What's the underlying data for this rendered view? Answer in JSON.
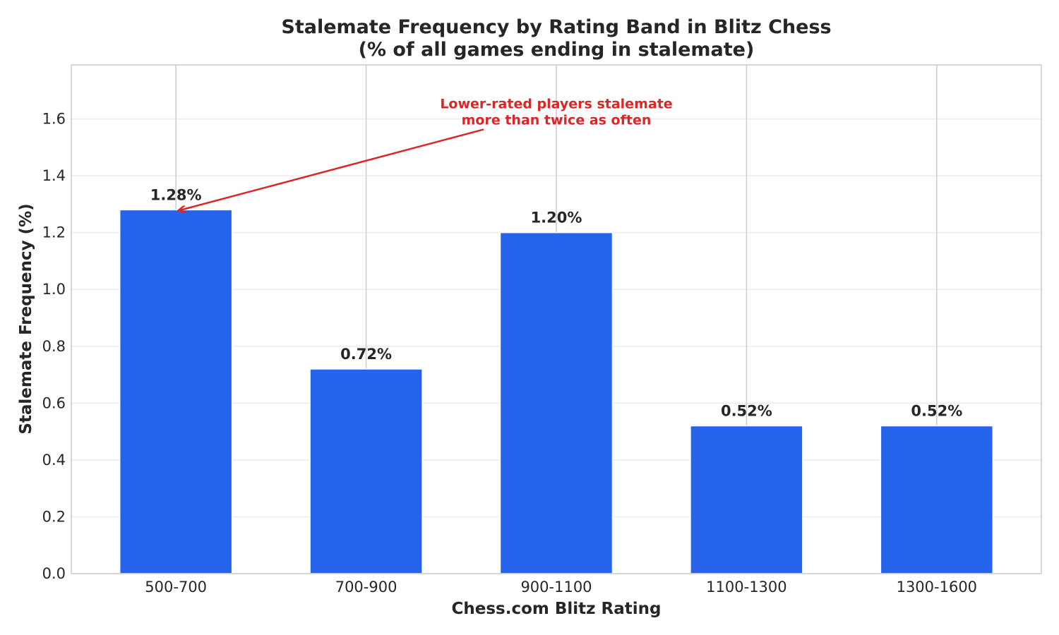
{
  "chart_data": {
    "type": "bar",
    "title": [
      "Stalemate Frequency by Rating Band in Blitz Chess",
      "(% of all games ending in stalemate)"
    ],
    "xlabel": "Chess.com Blitz Rating",
    "ylabel": "Stalemate Frequency (%)",
    "categories": [
      "500-700",
      "700-900",
      "900-1100",
      "1100-1300",
      "1300-1600"
    ],
    "values": [
      1.28,
      0.72,
      1.2,
      0.52,
      0.52
    ],
    "data_labels": [
      "1.28%",
      "0.72%",
      "1.20%",
      "0.52%",
      "0.52%"
    ],
    "ylim": [
      0,
      1.79
    ],
    "yticks": [
      0.0,
      0.2,
      0.4,
      0.6,
      0.8,
      1.0,
      1.2,
      1.4,
      1.6
    ],
    "ytick_labels": [
      "0.0",
      "0.2",
      "0.4",
      "0.6",
      "0.8",
      "1.0",
      "1.2",
      "1.4",
      "1.6"
    ],
    "grid": true,
    "annotation": {
      "lines": [
        "Lower-rated players stalemate",
        "more than twice as often"
      ],
      "target_category": "500-700",
      "target_value": 1.28,
      "text_value": 1.62,
      "text_category_index": 2
    },
    "colors": {
      "bar": "#2563eb",
      "annotation": "#dc2626",
      "text": "#262626",
      "grid_major": "#cccccc",
      "grid_minor": "#ebebeb",
      "frame": "#cccccc"
    }
  }
}
